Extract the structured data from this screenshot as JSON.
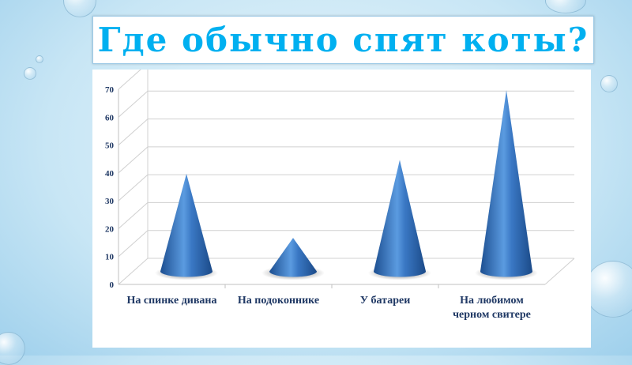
{
  "slide": {
    "title": "Где обычно спят коты?"
  },
  "colors": {
    "title": "#00b0f0",
    "cone": "#2e6bb5",
    "axis_text": "#1f3864"
  },
  "chart_data": {
    "type": "bar",
    "bar_shape": "3d-cone",
    "title": "",
    "categories": [
      "На спинке дивана",
      "На подоконнике",
      "У батареи",
      "На  любимом черном свитере"
    ],
    "values": [
      35,
      12,
      40,
      65
    ],
    "ylim": [
      0,
      70
    ],
    "yticks": [
      0,
      10,
      20,
      30,
      40,
      50,
      60,
      70
    ],
    "grid": true,
    "legend": "none"
  }
}
